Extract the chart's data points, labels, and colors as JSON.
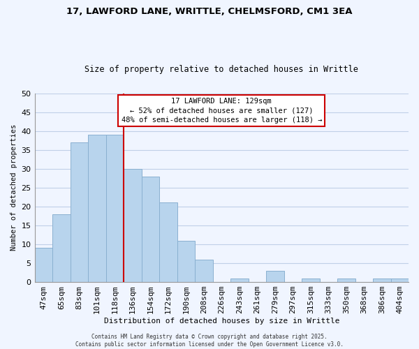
{
  "title_line1": "17, LAWFORD LANE, WRITTLE, CHELMSFORD, CM1 3EA",
  "title_line2": "Size of property relative to detached houses in Writtle",
  "xlabel": "Distribution of detached houses by size in Writtle",
  "ylabel": "Number of detached properties",
  "bar_labels": [
    "47sqm",
    "65sqm",
    "83sqm",
    "101sqm",
    "118sqm",
    "136sqm",
    "154sqm",
    "172sqm",
    "190sqm",
    "208sqm",
    "226sqm",
    "243sqm",
    "261sqm",
    "279sqm",
    "297sqm",
    "315sqm",
    "333sqm",
    "350sqm",
    "368sqm",
    "386sqm",
    "404sqm"
  ],
  "bar_values": [
    9,
    18,
    37,
    39,
    39,
    30,
    28,
    21,
    11,
    6,
    0,
    1,
    0,
    3,
    0,
    1,
    0,
    1,
    0,
    1,
    1
  ],
  "bar_color": "#b8d4ed",
  "bar_edge_color": "#8ab0d0",
  "vline_x": 4.5,
  "vline_color": "#cc0000",
  "ylim": [
    0,
    50
  ],
  "yticks": [
    0,
    5,
    10,
    15,
    20,
    25,
    30,
    35,
    40,
    45,
    50
  ],
  "annotation_title": "17 LAWFORD LANE: 129sqm",
  "annotation_line2": "← 52% of detached houses are smaller (127)",
  "annotation_line3": "48% of semi-detached houses are larger (118) →",
  "footer_line1": "Contains HM Land Registry data © Crown copyright and database right 2025.",
  "footer_line2": "Contains public sector information licensed under the Open Government Licence v3.0.",
  "background_color": "#f0f5ff",
  "grid_color": "#c0d0e8"
}
